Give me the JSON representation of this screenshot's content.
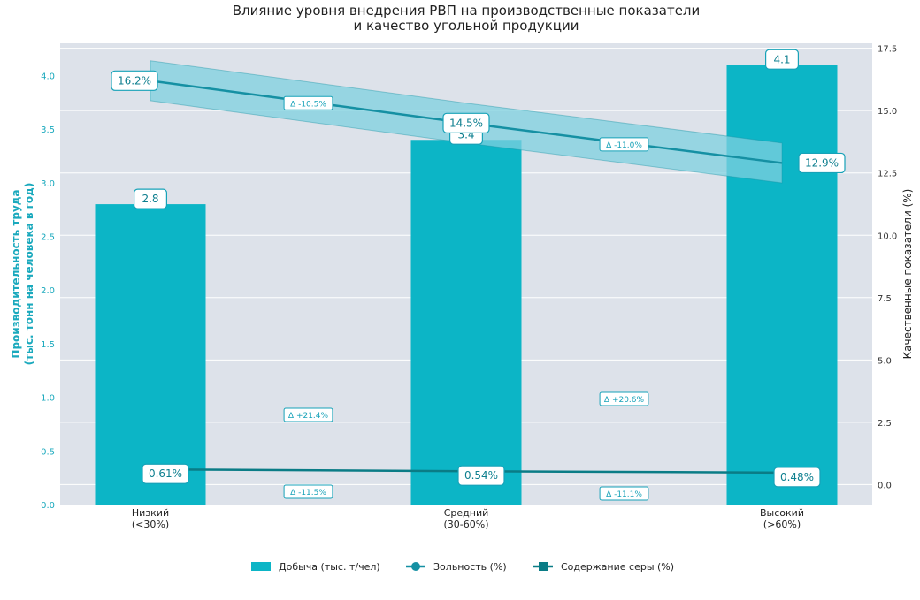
{
  "colors": {
    "bar": "#0cb5c6",
    "ash_line": "#1590a3",
    "ash_band": "#7dd0df",
    "sulfur_line": "#0a7c86",
    "plot_bg": "#dde2ea",
    "accent": "#1aa9bd"
  },
  "chart_data": {
    "type": "bar",
    "title_line1": "Влияние уровня внедрения РВП на производственные показатели",
    "title_line2": "и качество угольной продукции",
    "categories": [
      "Низкий\n(<30%)",
      "Средний\n(30-60%)",
      "Высокий\n(>60%)"
    ],
    "ylabel_left_line1": "Производительность труда",
    "ylabel_left_line2": "(тыс. тонн на человека в год)",
    "ylabel_right": "Качественные показатели (%)",
    "ylim_left": [
      0,
      4.3
    ],
    "ylim_right": [
      -0.8,
      17.7
    ],
    "yticks_left": [
      0.0,
      0.5,
      1.0,
      1.5,
      2.0,
      2.5,
      3.0,
      3.5,
      4.0
    ],
    "yticks_left_labels": [
      "0.0",
      "0.5",
      "1.0",
      "1.5",
      "2.0",
      "2.5",
      "3.0",
      "3.5",
      "4.0"
    ],
    "yticks_right": [
      0.0,
      2.5,
      5.0,
      7.5,
      10.0,
      12.5,
      15.0,
      17.5
    ],
    "yticks_right_labels": [
      "0.0",
      "2.5",
      "5.0",
      "7.5",
      "10.0",
      "12.5",
      "15.0",
      "17.5"
    ],
    "grid": true,
    "legend_position": "bottom-center",
    "series": [
      {
        "name": "Добыча (тыс. т/чел)",
        "kind": "bar",
        "axis": "left",
        "values": [
          2.8,
          3.4,
          4.1
        ],
        "labels": [
          "2.8",
          "3.4",
          "4.1"
        ]
      },
      {
        "name": "Зольность (%)",
        "kind": "line",
        "axis": "right",
        "values": [
          16.2,
          14.5,
          12.9
        ],
        "labels": [
          "16.2%",
          "14.5%",
          "12.9%"
        ],
        "band_halfwidth": 0.8
      },
      {
        "name": "Содержание серы (%)",
        "kind": "line",
        "axis": "right",
        "values": [
          0.61,
          0.54,
          0.48
        ],
        "labels": [
          "0.61%",
          "0.54%",
          "0.48%"
        ]
      }
    ],
    "annotations": {
      "ash_deltas": [
        "Δ -10.5%",
        "Δ -11.0%"
      ],
      "production_deltas": [
        "Δ +21.4%",
        "Δ +20.6%"
      ],
      "sulfur_deltas": [
        "Δ -11.5%",
        "Δ -11.1%"
      ]
    }
  }
}
